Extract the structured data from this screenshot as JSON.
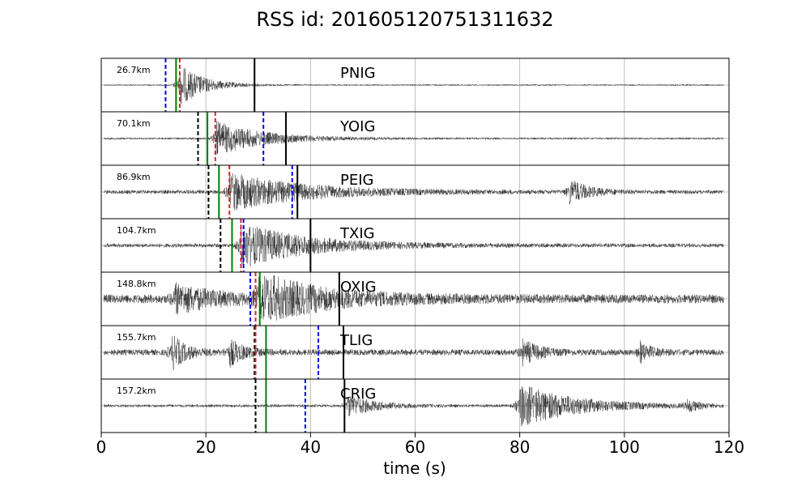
{
  "chart_data": {
    "type": "line",
    "title": "RSS id: 2016051207513116​32",
    "xlabel": "time (s)",
    "xlim": [
      0,
      120
    ],
    "xticks": [
      0,
      20,
      40,
      60,
      80,
      100,
      120
    ],
    "grid": true,
    "pick_colors": {
      "black_dashed": "#000000",
      "red_dashed": "#d62728",
      "blue_dashed": "#0000ff",
      "green": "#008000",
      "black_solid": "#000000"
    },
    "stations": [
      {
        "name": "PNIG",
        "distance": "26.7km",
        "black_dashed": null,
        "blue_dashed": 12.3,
        "green": 14.3,
        "red_dashed": 15.0,
        "black_solid": 29.3,
        "noise": 0.03,
        "bursts": [
          {
            "t": 15.0,
            "amp": 0.85,
            "decay": 4.5
          }
        ]
      },
      {
        "name": "YOIG",
        "distance": "70.1km",
        "black_dashed": 18.5,
        "blue_dashed": 31.0,
        "green": 20.3,
        "red_dashed": 21.8,
        "black_solid": 35.3,
        "noise": 0.04,
        "bursts": [
          {
            "t": 21.8,
            "amp": 0.7,
            "decay": 9
          }
        ]
      },
      {
        "name": "PEIG",
        "distance": "86.9km",
        "black_dashed": 20.5,
        "blue_dashed": 36.5,
        "green": 22.5,
        "red_dashed": 24.5,
        "black_solid": 37.5,
        "noise": 0.08,
        "bursts": [
          {
            "t": 24.5,
            "amp": 0.75,
            "decay": 14
          },
          {
            "t": 89.5,
            "amp": 0.5,
            "decay": 3.5
          }
        ]
      },
      {
        "name": "TXIG",
        "distance": "104.7km",
        "black_dashed": 22.8,
        "blue_dashed": 27.2,
        "green": 25.0,
        "red_dashed": 26.7,
        "black_solid": 40.0,
        "noise": 0.08,
        "bursts": [
          {
            "t": 26.7,
            "amp": 0.9,
            "decay": 12
          }
        ]
      },
      {
        "name": "OXIG",
        "distance": "148.8km",
        "black_dashed": null,
        "blue_dashed": 28.5,
        "green": 30.3,
        "red_dashed": 29.5,
        "black_solid": 45.5,
        "noise": 0.18,
        "bursts": [
          {
            "t": 14,
            "amp": 0.55,
            "decay": 8
          },
          {
            "t": 30,
            "amp": 0.95,
            "decay": 12
          }
        ]
      },
      {
        "name": "TLIG",
        "distance": "155.7km",
        "black_dashed": 29.3,
        "blue_dashed": 41.5,
        "green": 31.5,
        "red_dashed": 29.5,
        "black_solid": 46.3,
        "noise": 0.12,
        "bursts": [
          {
            "t": 13.5,
            "amp": 0.7,
            "decay": 2.5
          },
          {
            "t": 24.5,
            "amp": 0.55,
            "decay": 2.5
          },
          {
            "t": 80.5,
            "amp": 0.5,
            "decay": 3
          },
          {
            "t": 103,
            "amp": 0.4,
            "decay": 2
          }
        ]
      },
      {
        "name": "CRIG",
        "distance": "157.2km",
        "black_dashed": 29.5,
        "blue_dashed": 39.0,
        "green": 31.5,
        "red_dashed": null,
        "black_solid": 46.5,
        "noise": 0.06,
        "bursts": [
          {
            "t": 47,
            "amp": 0.45,
            "decay": 5
          },
          {
            "t": 80,
            "amp": 0.9,
            "decay": 10
          },
          {
            "t": 112,
            "amp": 0.25,
            "decay": 2
          }
        ]
      }
    ]
  }
}
